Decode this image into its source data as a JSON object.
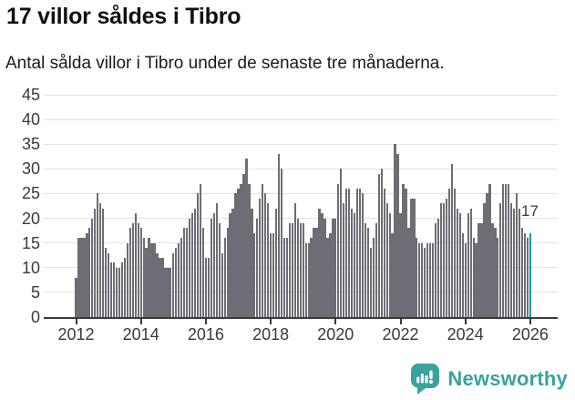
{
  "header": {
    "title": "17 villor såldes i Tibro",
    "subtitle": "Antal sålda villor i Tibro under de senaste tre månaderna."
  },
  "chart_data": {
    "type": "bar",
    "title": "17 villor såldes i Tibro",
    "subtitle": "Antal sålda villor i Tibro under de senaste tre månaderna.",
    "frequency": "monthly",
    "x_range": [
      "2012-01",
      "2026-01"
    ],
    "values": [
      8,
      16,
      16,
      16,
      17,
      18,
      20,
      22,
      25,
      23,
      22,
      14,
      13,
      11,
      11,
      10,
      10,
      11,
      12,
      15,
      18,
      19,
      21,
      19,
      18,
      16,
      14,
      16,
      15,
      15,
      13,
      12,
      12,
      10,
      10,
      10,
      13,
      14,
      15,
      16,
      18,
      18,
      20,
      21,
      22,
      25,
      27,
      18,
      12,
      12,
      20,
      21,
      23,
      19,
      13,
      16,
      18,
      21,
      22,
      25,
      26,
      27,
      29,
      32,
      27,
      22,
      17,
      20,
      24,
      27,
      25,
      23,
      17,
      17,
      22,
      33,
      30,
      16,
      16,
      19,
      19,
      23,
      20,
      19,
      19,
      15,
      15,
      16,
      18,
      18,
      22,
      21,
      20,
      16,
      17,
      20,
      20,
      27,
      30,
      23,
      26,
      26,
      22,
      21,
      26,
      26,
      25,
      19,
      18,
      14,
      16,
      19,
      29,
      30,
      26,
      23,
      21,
      17,
      35,
      33,
      21,
      27,
      26,
      18,
      24,
      24,
      16,
      15,
      15,
      14,
      15,
      15,
      15,
      19,
      20,
      23,
      23,
      24,
      26,
      31,
      26,
      22,
      21,
      17,
      15,
      21,
      22,
      16,
      15,
      19,
      19,
      23,
      25,
      27,
      19,
      18,
      16,
      23,
      27,
      27,
      27,
      23,
      22,
      25,
      22,
      18,
      17,
      16,
      17
    ],
    "highlight": {
      "index": 168,
      "value": 17,
      "label": "17"
    },
    "yticks": [
      0,
      5,
      10,
      15,
      20,
      25,
      30,
      35,
      40,
      45
    ],
    "ylim": [
      0,
      45
    ],
    "xticks": [
      "2012",
      "2014",
      "2016",
      "2018",
      "2020",
      "2022",
      "2024",
      "2026"
    ],
    "grid": "horizontal",
    "legend": "none",
    "bar_color": "#6d6d76",
    "highlight_color": "#00a0a2"
  },
  "colors": {
    "bar": "#6d6d76",
    "highlight": "#00a0a2",
    "grid": "#e3e3e3",
    "axis": "#3a3a3a",
    "text": "#1a1a1a",
    "brand": "#3aa29e"
  },
  "footer": {
    "brand": "Newsworthy",
    "logo_icon": "speech-bubble-bar-chart-icon"
  }
}
